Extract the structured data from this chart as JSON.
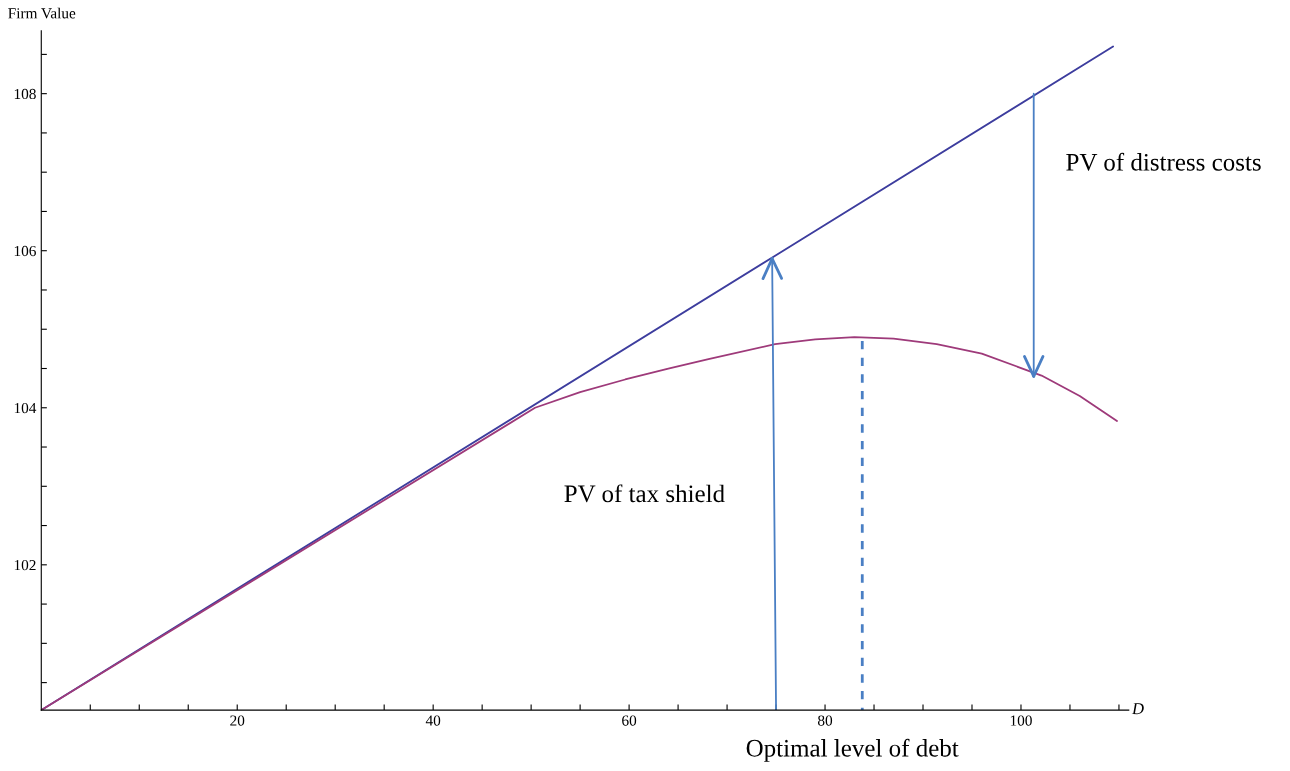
{
  "chart_data": {
    "type": "line",
    "xlabel": "D",
    "ylabel": "Firm Value",
    "xlim": [
      0,
      111
    ],
    "ylim": [
      100.15,
      108.8
    ],
    "xticks": [
      {
        "value": 5,
        "label": null
      },
      {
        "value": 10,
        "label": null
      },
      {
        "value": 15,
        "label": null
      },
      20,
      {
        "value": 25,
        "label": null
      },
      {
        "value": 30,
        "label": null
      },
      {
        "value": 35,
        "label": null
      },
      40,
      {
        "value": 45,
        "label": null
      },
      {
        "value": 50,
        "label": null
      },
      {
        "value": 55,
        "label": null
      },
      60,
      {
        "value": 65,
        "label": null
      },
      {
        "value": 70,
        "label": null
      },
      {
        "value": 75,
        "label": null
      },
      80,
      {
        "value": 85,
        "label": null
      },
      {
        "value": 90,
        "label": null
      },
      {
        "value": 95,
        "label": null
      },
      100,
      {
        "value": 105,
        "label": null
      },
      {
        "value": 110,
        "label": null
      }
    ],
    "yticks": [
      {
        "value": 100.5,
        "label": null
      },
      {
        "value": 101,
        "label": null
      },
      {
        "value": 101.5,
        "label": null
      },
      102,
      {
        "value": 102.5,
        "label": null
      },
      {
        "value": 103,
        "label": null
      },
      {
        "value": 103.5,
        "label": null
      },
      104,
      {
        "value": 104.5,
        "label": null
      },
      {
        "value": 105,
        "label": null
      },
      {
        "value": 105.5,
        "label": null
      },
      106,
      {
        "value": 106.5,
        "label": null
      },
      {
        "value": 107,
        "label": null
      },
      {
        "value": 107.5,
        "label": null
      },
      108,
      {
        "value": 108.5,
        "label": null
      }
    ],
    "grid": false,
    "legend": false,
    "series": [
      {
        "color": "#3d3d9e",
        "x": [
          0,
          109.4
        ],
        "values": [
          100.15,
          108.6
        ]
      },
      {
        "color": "#9e3a7a",
        "x": [
          0,
          50.4,
          55,
          59.6,
          64,
          68.1,
          74.9,
          79,
          83,
          87,
          91.4,
          96,
          102.1,
          106,
          109.8
        ],
        "values": [
          100.15,
          104.0,
          104.2,
          104.36,
          104.5,
          104.62,
          104.81,
          104.87,
          104.9,
          104.88,
          104.81,
          104.69,
          104.41,
          104.15,
          103.83
        ]
      },
      {
        "color": "#4a7fc4",
        "x": [
          75.0,
          74.6
        ],
        "values": [
          100.15,
          105.9
        ]
      },
      {
        "color": "#4a7fc4",
        "x": [
          101.3,
          101.3
        ],
        "values": [
          108.0,
          104.4
        ]
      },
      {
        "color": "#4a7fc4",
        "x": [
          83.8,
          83.8
        ],
        "values": [
          104.85,
          100.15
        ],
        "line_style": "dashed"
      }
    ],
    "annotations": [
      "PV of tax shield",
      "PV of distress costs",
      "Optimal level of debt"
    ]
  }
}
